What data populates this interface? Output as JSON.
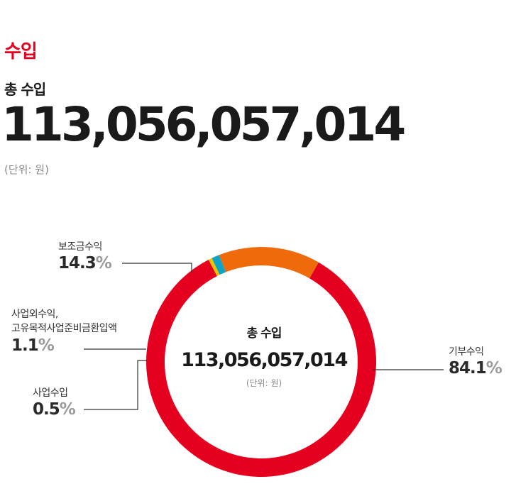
{
  "header": {
    "section_title": "수입",
    "total_label": "총 수입",
    "total_value": "113,056,057,014",
    "unit": "(단위: 원)"
  },
  "chart_data": {
    "type": "pie",
    "donut": true,
    "center": {
      "label": "총 수입",
      "value": "113,056,057,014",
      "unit": "(단위: 원)"
    },
    "slices": [
      {
        "label": "기부수익",
        "value": 84.1,
        "value_text": "84.1",
        "color": "#e6001f"
      },
      {
        "label": "사업수입",
        "value": 0.5,
        "value_text": "0.5",
        "color": "#f2c200"
      },
      {
        "label": "사업외수익, 고유목적사업준비금환입액",
        "label_lines": [
          "사업외수익,",
          "고유목적사업준비금환입액"
        ],
        "value": 1.1,
        "value_text": "1.1",
        "color": "#10a3c4"
      },
      {
        "label": "보조금수익",
        "value": 14.3,
        "value_text": "14.3",
        "color": "#ee6a0a"
      }
    ],
    "percent_symbol": "%",
    "legend": "callouts"
  }
}
